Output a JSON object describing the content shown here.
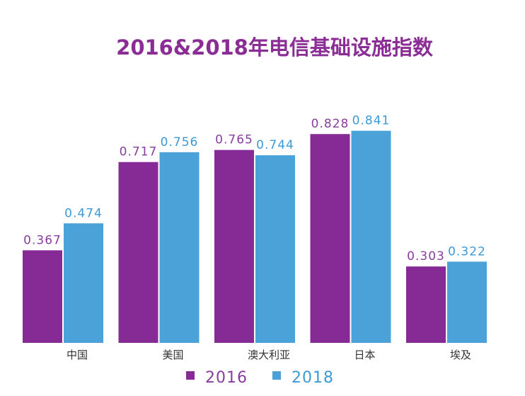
{
  "chart_data": {
    "type": "bar",
    "title": "2016&2018年电信基础设施指数",
    "categories": [
      "中国",
      "美国",
      "澳大利亚",
      "日本",
      "埃及"
    ],
    "series": [
      {
        "name": "2016",
        "values": [
          0.367,
          0.717,
          0.765,
          0.828,
          0.303
        ],
        "labels": [
          "0.367",
          "0.717",
          "0.765",
          "0.828",
          "0.303"
        ],
        "color": "#862a96"
      },
      {
        "name": "2018",
        "values": [
          0.474,
          0.756,
          0.744,
          0.841,
          0.322
        ],
        "labels": [
          "0.474",
          "0.756",
          "0.744",
          "0.841",
          "0.322"
        ],
        "color": "#4aa2d9"
      }
    ],
    "xlabel": "",
    "ylabel": "",
    "ylim": [
      0,
      0.9
    ],
    "grid": false,
    "legend": "bottom-center"
  },
  "colors": {
    "title": "#8a2d95",
    "value_2016": "#8a3d9e",
    "value_2018": "#3c9ad6",
    "tick": "#333333"
  }
}
